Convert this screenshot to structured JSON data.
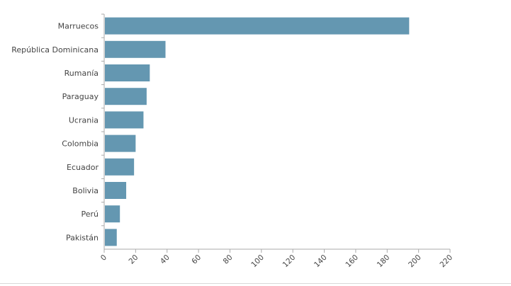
{
  "chart_data": {
    "type": "bar",
    "orientation": "horizontal",
    "categories": [
      "Marruecos",
      "República Dominicana",
      "Rumanía",
      "Paraguay",
      "Ucrania",
      "Colombia",
      "Ecuador",
      "Bolivia",
      "Perú",
      "Pakistán"
    ],
    "values": [
      194,
      39,
      29,
      27,
      25,
      20,
      19,
      14,
      10,
      8
    ],
    "xlim": [
      0,
      220
    ],
    "xticks": [
      "0",
      "20",
      "40",
      "60",
      "80",
      "100",
      "120",
      "140",
      "160",
      "180",
      "200",
      "220"
    ],
    "grid": false,
    "bar_color": "#6497b1",
    "title": "",
    "xlabel": "",
    "ylabel": ""
  }
}
